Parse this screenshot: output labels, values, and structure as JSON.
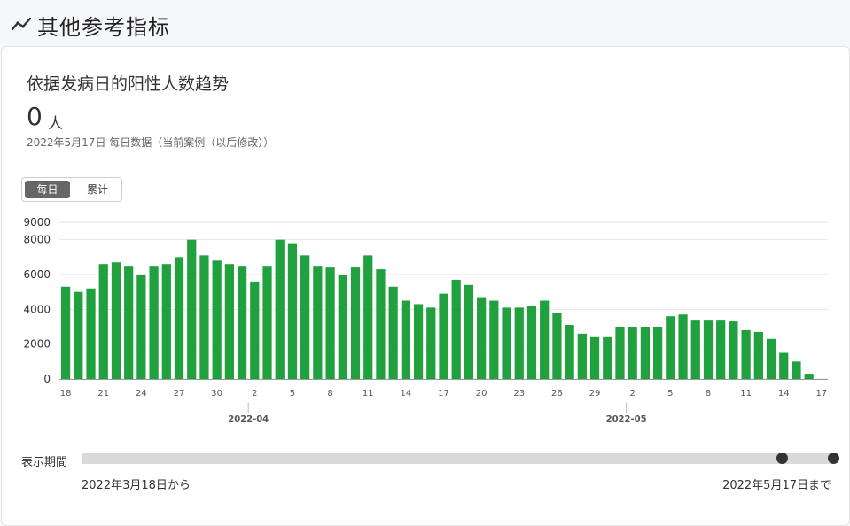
{
  "header": {
    "title": "其他参考指标",
    "icon": "trend-line-icon"
  },
  "card": {
    "title": "依据发病日的阳性人数趋势",
    "value": "0",
    "unit": "人",
    "note": "2022年5月17日 每日数据（当前案例（以后修改））"
  },
  "toggle": {
    "daily": "每日",
    "cumulative": "累计",
    "selected": "daily"
  },
  "colors": {
    "bar": "#21a03e",
    "grid": "#e6e6e6",
    "axis": "#999999"
  },
  "chart_data": {
    "type": "bar",
    "title": "",
    "xlabel": "",
    "ylabel": "",
    "ylim": [
      0,
      9000
    ],
    "y_ticks": [
      0,
      2000,
      4000,
      6000,
      8000,
      9000
    ],
    "x": [
      "3-18",
      "3-19",
      "3-20",
      "3-21",
      "3-22",
      "3-23",
      "3-24",
      "3-25",
      "3-26",
      "3-27",
      "3-28",
      "3-29",
      "3-30",
      "3-31",
      "4-1",
      "4-2",
      "4-3",
      "4-4",
      "4-5",
      "4-6",
      "4-7",
      "4-8",
      "4-9",
      "4-10",
      "4-11",
      "4-12",
      "4-13",
      "4-14",
      "4-15",
      "4-16",
      "4-17",
      "4-18",
      "4-19",
      "4-20",
      "4-21",
      "4-22",
      "4-23",
      "4-24",
      "4-25",
      "4-26",
      "4-27",
      "4-28",
      "4-29",
      "4-30",
      "5-1",
      "5-2",
      "5-3",
      "5-4",
      "5-5",
      "5-6",
      "5-7",
      "5-8",
      "5-9",
      "5-10",
      "5-11",
      "5-12",
      "5-13",
      "5-14",
      "5-15",
      "5-16",
      "5-17"
    ],
    "tick_labels": [
      {
        "index": 0,
        "label": "18"
      },
      {
        "index": 3,
        "label": "21"
      },
      {
        "index": 6,
        "label": "24"
      },
      {
        "index": 9,
        "label": "27"
      },
      {
        "index": 12,
        "label": "30"
      },
      {
        "index": 15,
        "label": "2"
      },
      {
        "index": 18,
        "label": "5"
      },
      {
        "index": 21,
        "label": "8"
      },
      {
        "index": 24,
        "label": "11"
      },
      {
        "index": 27,
        "label": "14"
      },
      {
        "index": 30,
        "label": "17"
      },
      {
        "index": 33,
        "label": "20"
      },
      {
        "index": 36,
        "label": "23"
      },
      {
        "index": 39,
        "label": "26"
      },
      {
        "index": 42,
        "label": "29"
      },
      {
        "index": 45,
        "label": "2"
      },
      {
        "index": 48,
        "label": "5"
      },
      {
        "index": 51,
        "label": "8"
      },
      {
        "index": 54,
        "label": "11"
      },
      {
        "index": 57,
        "label": "14"
      },
      {
        "index": 60,
        "label": "17"
      }
    ],
    "month_labels": [
      {
        "index": 14,
        "label": "2022-04"
      },
      {
        "index": 44,
        "label": "2022-05"
      }
    ],
    "series": [
      {
        "values": [
          5300,
          5000,
          5200,
          6600,
          6700,
          6500,
          6000,
          6500,
          6600,
          7000,
          8000,
          7100,
          6800,
          6600,
          6500,
          5600,
          6500,
          8000,
          7800,
          7100,
          6500,
          6400,
          6000,
          6400,
          7100,
          6300,
          5300,
          4500,
          4300,
          4100,
          4900,
          5700,
          5400,
          4700,
          4500,
          4100,
          4100,
          4200,
          4500,
          3800,
          3100,
          2600,
          2400,
          2400,
          3000,
          3000,
          3000,
          3000,
          3600,
          3700,
          3400,
          3400,
          3400,
          3300,
          2800,
          2700,
          2300,
          1500,
          1000,
          300,
          0
        ]
      }
    ]
  },
  "period": {
    "label": "表示期間",
    "from": "2022年3月18日から",
    "to": "2022年5月17日まで",
    "start_fraction": 0.9322,
    "end_fraction": 1.0
  }
}
